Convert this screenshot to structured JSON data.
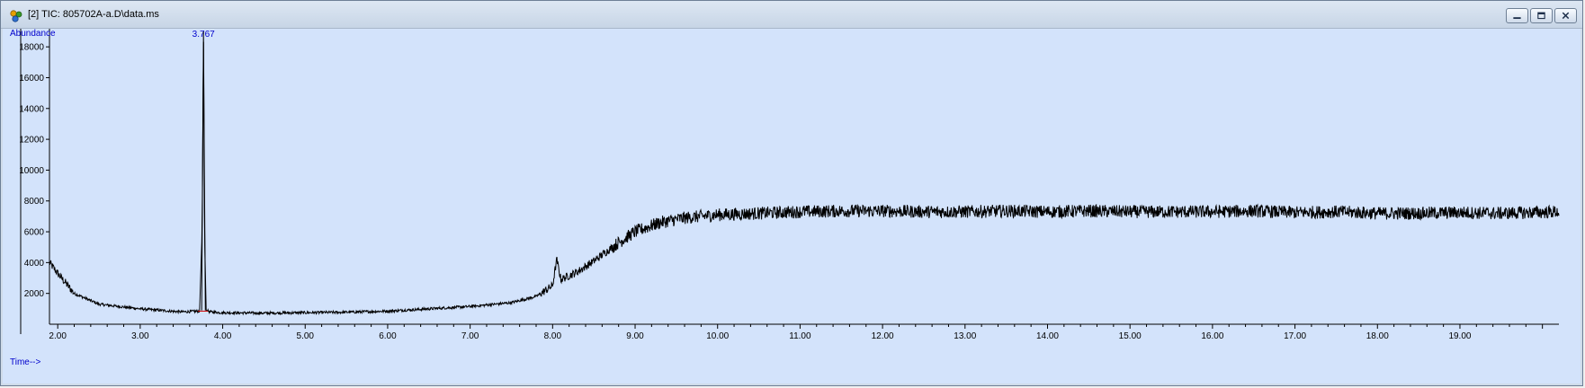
{
  "window": {
    "title": "[2] TIC: 805702A-a.D\\data.ms",
    "icon": "chemstation-app-icon",
    "controls": [
      "minimize-icon",
      "restore-icon",
      "close-icon"
    ]
  },
  "chart_data": {
    "type": "line",
    "title": "",
    "ylabel": "Abundance",
    "xlabel": "Time-->",
    "xlim": [
      1.9,
      20.2
    ],
    "ylim": [
      0,
      19000
    ],
    "x_ticks": [
      "2.00",
      "3.00",
      "4.00",
      "5.00",
      "6.00",
      "7.00",
      "8.00",
      "9.00",
      "10.00",
      "11.00",
      "12.00",
      "13.00",
      "14.00",
      "15.00",
      "16.00",
      "17.00",
      "18.00",
      "19.00"
    ],
    "y_ticks": [
      "2000",
      "4000",
      "6000",
      "8000",
      "10000",
      "12000",
      "14000",
      "16000",
      "18000"
    ],
    "peak_annotations": [
      {
        "label": "3.767",
        "x": 3.767,
        "y": 19000
      }
    ],
    "series": [
      {
        "color": "#000000",
        "x": [
          1.9,
          2.0,
          2.2,
          2.5,
          3.0,
          3.5,
          3.72,
          3.75,
          3.767,
          3.78,
          3.8,
          3.85,
          4.0,
          4.5,
          5.0,
          5.5,
          6.0,
          6.5,
          7.0,
          7.5,
          7.8,
          8.0,
          8.05,
          8.1,
          8.3,
          8.5,
          8.8,
          9.0,
          9.3,
          9.6,
          10.0,
          10.5,
          11.0,
          11.5,
          12.0,
          12.5,
          13.0,
          13.5,
          14.0,
          14.5,
          15.0,
          15.5,
          16.0,
          16.5,
          17.0,
          17.5,
          18.0,
          18.5,
          19.0,
          19.5,
          20.2
        ],
        "y": [
          4000,
          3300,
          2000,
          1300,
          1000,
          800,
          850,
          6000,
          19000,
          6000,
          900,
          800,
          750,
          720,
          750,
          780,
          850,
          1000,
          1150,
          1400,
          1800,
          2500,
          4200,
          2900,
          3400,
          4100,
          5300,
          6000,
          6600,
          6900,
          7100,
          7200,
          7300,
          7350,
          7350,
          7300,
          7300,
          7350,
          7300,
          7350,
          7300,
          7300,
          7300,
          7350,
          7250,
          7300,
          7200,
          7200,
          7250,
          7200,
          7300
        ]
      }
    ]
  }
}
